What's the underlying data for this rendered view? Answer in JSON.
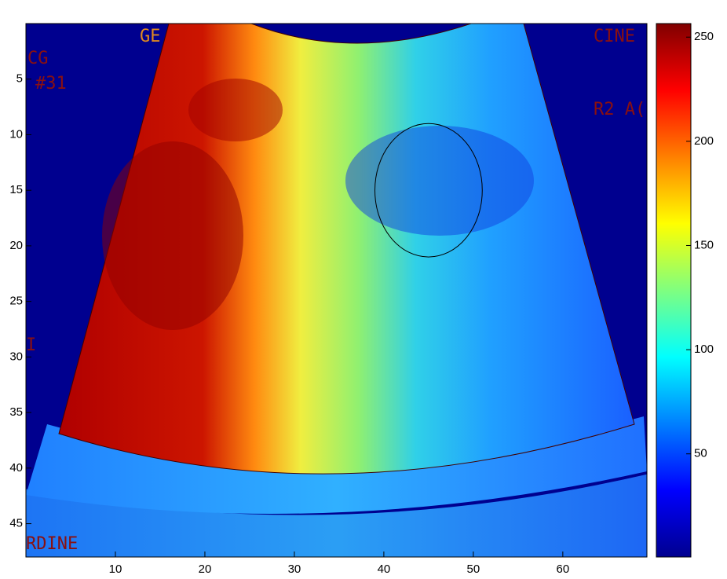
{
  "chart_data": {
    "type": "image",
    "colormap": "jet",
    "xlim": [
      0,
      69.4
    ],
    "ylim": [
      0,
      48
    ],
    "xticks": [
      10,
      20,
      30,
      40,
      50,
      60
    ],
    "yticks": [
      5,
      10,
      15,
      20,
      25,
      30,
      35,
      40,
      45
    ],
    "clim": [
      0.5,
      256.5
    ],
    "cticks": [
      50,
      100,
      150,
      200,
      250
    ],
    "ellipse": {
      "center": [
        45,
        15
      ],
      "radii": [
        6,
        6
      ]
    },
    "overlay_texts": [
      "GE",
      "CINE",
      "CG",
      "#31",
      "R2 A(",
      "I",
      "RDINE"
    ]
  }
}
